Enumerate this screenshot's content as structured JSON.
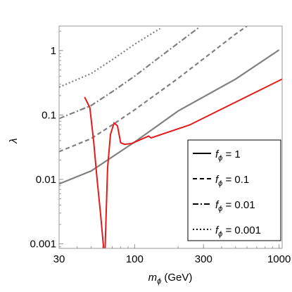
{
  "chart_data": {
    "type": "line",
    "xlabel": {
      "symbol": "m",
      "subscript": "ϕ",
      "unit": " (GeV)"
    },
    "ylabel": "λ",
    "x_scale": "log",
    "y_scale": "log",
    "xlim": [
      30,
      1050
    ],
    "ylim": [
      0.00085,
      2.4
    ],
    "x_ticks": [
      {
        "value": 30,
        "label": "30"
      },
      {
        "value": 100,
        "label": "100"
      },
      {
        "value": 300,
        "label": "300"
      },
      {
        "value": 1000,
        "label": "1000"
      }
    ],
    "y_ticks": [
      {
        "value": 0.001,
        "label": "0.001"
      },
      {
        "value": 0.01,
        "label": "0.01"
      },
      {
        "value": 0.1,
        "label": "0.1"
      },
      {
        "value": 1,
        "label": "1"
      }
    ],
    "grid": false,
    "legend_position": "bottom-right",
    "legend_var": {
      "symbol": "f",
      "subscript": "ϕ"
    },
    "series": [
      {
        "name": "1",
        "color": "#808080",
        "dash": "solid",
        "points": [
          [
            30,
            0.0085
          ],
          [
            50,
            0.0135
          ],
          [
            100,
            0.038
          ],
          [
            200,
            0.115
          ],
          [
            500,
            0.36
          ],
          [
            1000,
            1.02
          ]
        ]
      },
      {
        "name": "0.1",
        "color": "#808080",
        "dash": "dashed",
        "points": [
          [
            30,
            0.027
          ],
          [
            50,
            0.043
          ],
          [
            70,
            0.07
          ],
          [
            100,
            0.12
          ],
          [
            200,
            0.37
          ],
          [
            500,
            1.8
          ],
          [
            600,
            2.4
          ]
        ]
      },
      {
        "name": "0.01",
        "color": "#808080",
        "dash": "dashdot",
        "points": [
          [
            30,
            0.088
          ],
          [
            50,
            0.14
          ],
          [
            70,
            0.23
          ],
          [
            100,
            0.4
          ],
          [
            150,
            0.8
          ],
          [
            200,
            1.3
          ],
          [
            280,
            2.3
          ]
        ]
      },
      {
        "name": "0.001",
        "color": "#808080",
        "dash": "dotted",
        "points": [
          [
            30,
            0.27
          ],
          [
            50,
            0.44
          ],
          [
            70,
            0.72
          ],
          [
            100,
            1.25
          ],
          [
            150,
            2.2
          ]
        ]
      }
    ],
    "constraint_curve": {
      "color": "#e41a1c",
      "points": [
        [
          45,
          0.19
        ],
        [
          49,
          0.13
        ],
        [
          52,
          0.04
        ],
        [
          55,
          0.01
        ],
        [
          58,
          0.003
        ],
        [
          61,
          0.00085
        ],
        [
          62.5,
          0.00085
        ],
        [
          63.5,
          0.003
        ],
        [
          65,
          0.015
        ],
        [
          68,
          0.05
        ],
        [
          72,
          0.075
        ],
        [
          76,
          0.068
        ],
        [
          80,
          0.037
        ],
        [
          85,
          0.035
        ],
        [
          95,
          0.036
        ],
        [
          125,
          0.047
        ],
        [
          130,
          0.044
        ],
        [
          240,
          0.07
        ],
        [
          1050,
          0.36
        ]
      ]
    }
  }
}
